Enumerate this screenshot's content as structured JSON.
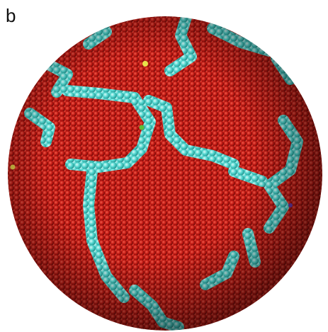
{
  "panel_label": "b"
}
